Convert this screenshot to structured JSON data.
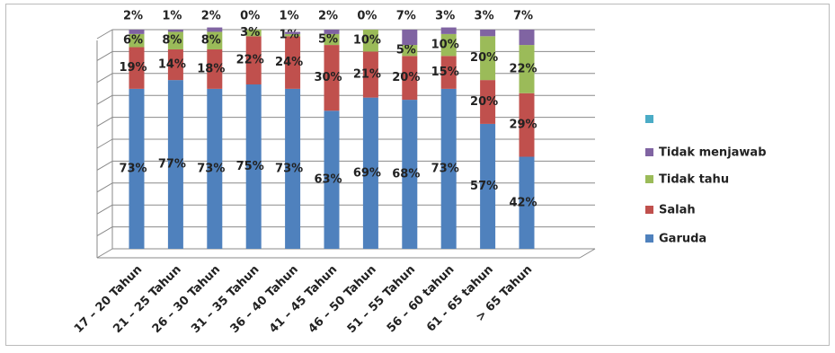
{
  "chart_data": {
    "type": "bar",
    "categories": [
      "17 – 20 Tahun",
      "21 – 25 Tahun",
      "26 – 30 Tahun",
      "31 – 35 Tahun",
      "36 – 40 Tahun",
      "41 – 45 Tahun",
      "46 – 50 Tahun",
      "51 – 55 Tahun",
      "56 – 60 tahun",
      "61 - 65 tahun",
      "> 65 Tahun"
    ],
    "series": [
      {
        "name": "Garuda",
        "color": "#4f81bd",
        "values": [
          73,
          77,
          73,
          75,
          73,
          63,
          69,
          68,
          73,
          57,
          42
        ],
        "value_labels": [
          "73%",
          "77%",
          "73%",
          "75%",
          "73%",
          "63%",
          "69%",
          "68%",
          "73%",
          "57%",
          "42%"
        ]
      },
      {
        "name": "Salah",
        "color": "#c0504d",
        "values": [
          19,
          14,
          18,
          22,
          24,
          30,
          21,
          20,
          15,
          20,
          29
        ],
        "value_labels": [
          "19%",
          "14%",
          "18%",
          "22%",
          "24%",
          "30%",
          "21%",
          "20%",
          "15%",
          "20%",
          "29%"
        ]
      },
      {
        "name": "Tidak tahu",
        "color": "#9bbb59",
        "values": [
          6,
          8,
          8,
          3,
          1,
          5,
          10,
          5,
          10,
          20,
          22
        ],
        "value_labels": [
          "6%",
          "8%",
          "8%",
          "3%",
          "1%",
          "5%",
          "10%",
          "5%",
          "10%",
          "20%",
          "22%"
        ]
      },
      {
        "name": "Tidak menjawab",
        "color": "#8064a2",
        "values": [
          2,
          1,
          2,
          0,
          1,
          2,
          0,
          7,
          3,
          3,
          7
        ],
        "value_labels": [
          "2%",
          "1%",
          "2%",
          "0%",
          "1%",
          "2%",
          "0%",
          "7%",
          "3%",
          "3%",
          "7%"
        ]
      }
    ],
    "stacked": true,
    "ylim": [
      0,
      100
    ],
    "yticks": [
      0,
      10,
      20,
      30,
      40,
      50,
      60,
      70,
      80,
      90,
      100
    ],
    "grid": true,
    "legend": "right"
  }
}
